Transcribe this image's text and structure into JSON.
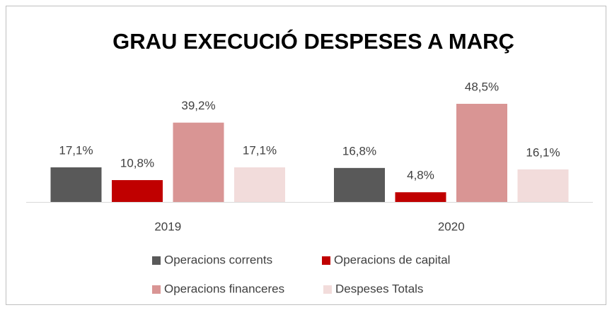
{
  "chart_data": {
    "type": "bar",
    "title": "GRAU EXECUCIÓ DESPESES A MARÇ",
    "categories": [
      "2019",
      "2020"
    ],
    "series": [
      {
        "name": "Operacions corrents",
        "color": "#595959",
        "values": [
          17.1,
          16.8
        ],
        "value_labels": [
          "17,1%",
          "16,8%"
        ]
      },
      {
        "name": "Operacions de capital",
        "color": "#c00000",
        "values": [
          10.8,
          4.8
        ],
        "value_labels": [
          "10,8%",
          "4,8%"
        ]
      },
      {
        "name": "Operacions financeres",
        "color": "#d99594",
        "values": [
          39.2,
          48.5
        ],
        "value_labels": [
          "39,2%",
          "48,5%"
        ]
      },
      {
        "name": "Despeses Totals",
        "color": "#f2dcdb",
        "values": [
          17.1,
          16.1
        ],
        "value_labels": [
          "17,1%",
          "16,1%"
        ]
      }
    ],
    "legend": "bottom"
  }
}
